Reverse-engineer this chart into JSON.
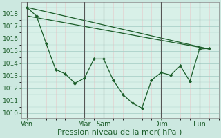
{
  "background_color": "#cce8e0",
  "plot_bg_color": "#d8f0e8",
  "grid_major_color": "#aad0c8",
  "grid_minor_color": "#e8c8c8",
  "line_color": "#1a5c28",
  "marker_color": "#1a5c28",
  "xlabel": "Pression niveau de la mer( hPa )",
  "xlabel_fontsize": 8,
  "ylabel_fontsize": 6.5,
  "tick_label_color": "#1a5c28",
  "yticks": [
    1010,
    1011,
    1012,
    1013,
    1014,
    1015,
    1016,
    1017,
    1018
  ],
  "ylim": [
    1009.6,
    1018.9
  ],
  "figsize": [
    3.2,
    2.0
  ],
  "dpi": 100,
  "xtick_positions": [
    0,
    3,
    4,
    7,
    9
  ],
  "xtick_labels": [
    "Ven",
    "Mar",
    "Sam",
    "Dim",
    "Lun"
  ],
  "vline_positions": [
    0,
    3,
    4,
    7,
    9
  ],
  "total_x_steps": 10,
  "line1_x": [
    0.0,
    0.5,
    1.0,
    1.5,
    2.0,
    2.5,
    3.0,
    3.5,
    4.0,
    4.5,
    5.0,
    5.5,
    6.0,
    6.5,
    7.0,
    7.5,
    8.0,
    8.5,
    9.0,
    9.5
  ],
  "line1_y": [
    1018.5,
    1017.8,
    1015.6,
    1013.5,
    1013.15,
    1012.4,
    1012.8,
    1014.35,
    1014.35,
    1012.65,
    1011.5,
    1010.8,
    1010.4,
    1012.65,
    1013.25,
    1013.05,
    1013.8,
    1012.55,
    1015.15,
    1015.2
  ],
  "line2_x": [
    0.05,
    9.5
  ],
  "line2_y": [
    1017.8,
    1015.15
  ],
  "line3_x": [
    0.0,
    9.5
  ],
  "line3_y": [
    1018.5,
    1015.15
  ],
  "xlim": [
    -0.3,
    10.0
  ]
}
